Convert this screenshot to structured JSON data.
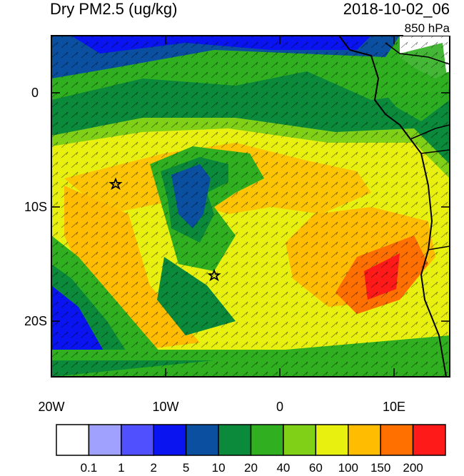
{
  "title": "Dry PM2.5 (ug/kg)",
  "datetime": "2018-10-02_06",
  "level": "850 hPa",
  "axes": {
    "y_ticks": [
      "0",
      "10S",
      "20S"
    ],
    "x_ticks": [
      "20W",
      "10W",
      "0",
      "10E"
    ]
  },
  "colorbar": {
    "labels": [
      "0.1",
      "1",
      "2",
      "5",
      "10",
      "20",
      "40",
      "60",
      "100",
      "150",
      "200"
    ],
    "colors": [
      "#ffffff",
      "#a0a0ff",
      "#5050ff",
      "#0a14f0",
      "#0a4fa0",
      "#0a8a3a",
      "#30b020",
      "#80d018",
      "#e8f010",
      "#ffbc00",
      "#ff7000",
      "#ff1a1a"
    ]
  },
  "markers": [
    "station-star",
    "station-star"
  ]
}
